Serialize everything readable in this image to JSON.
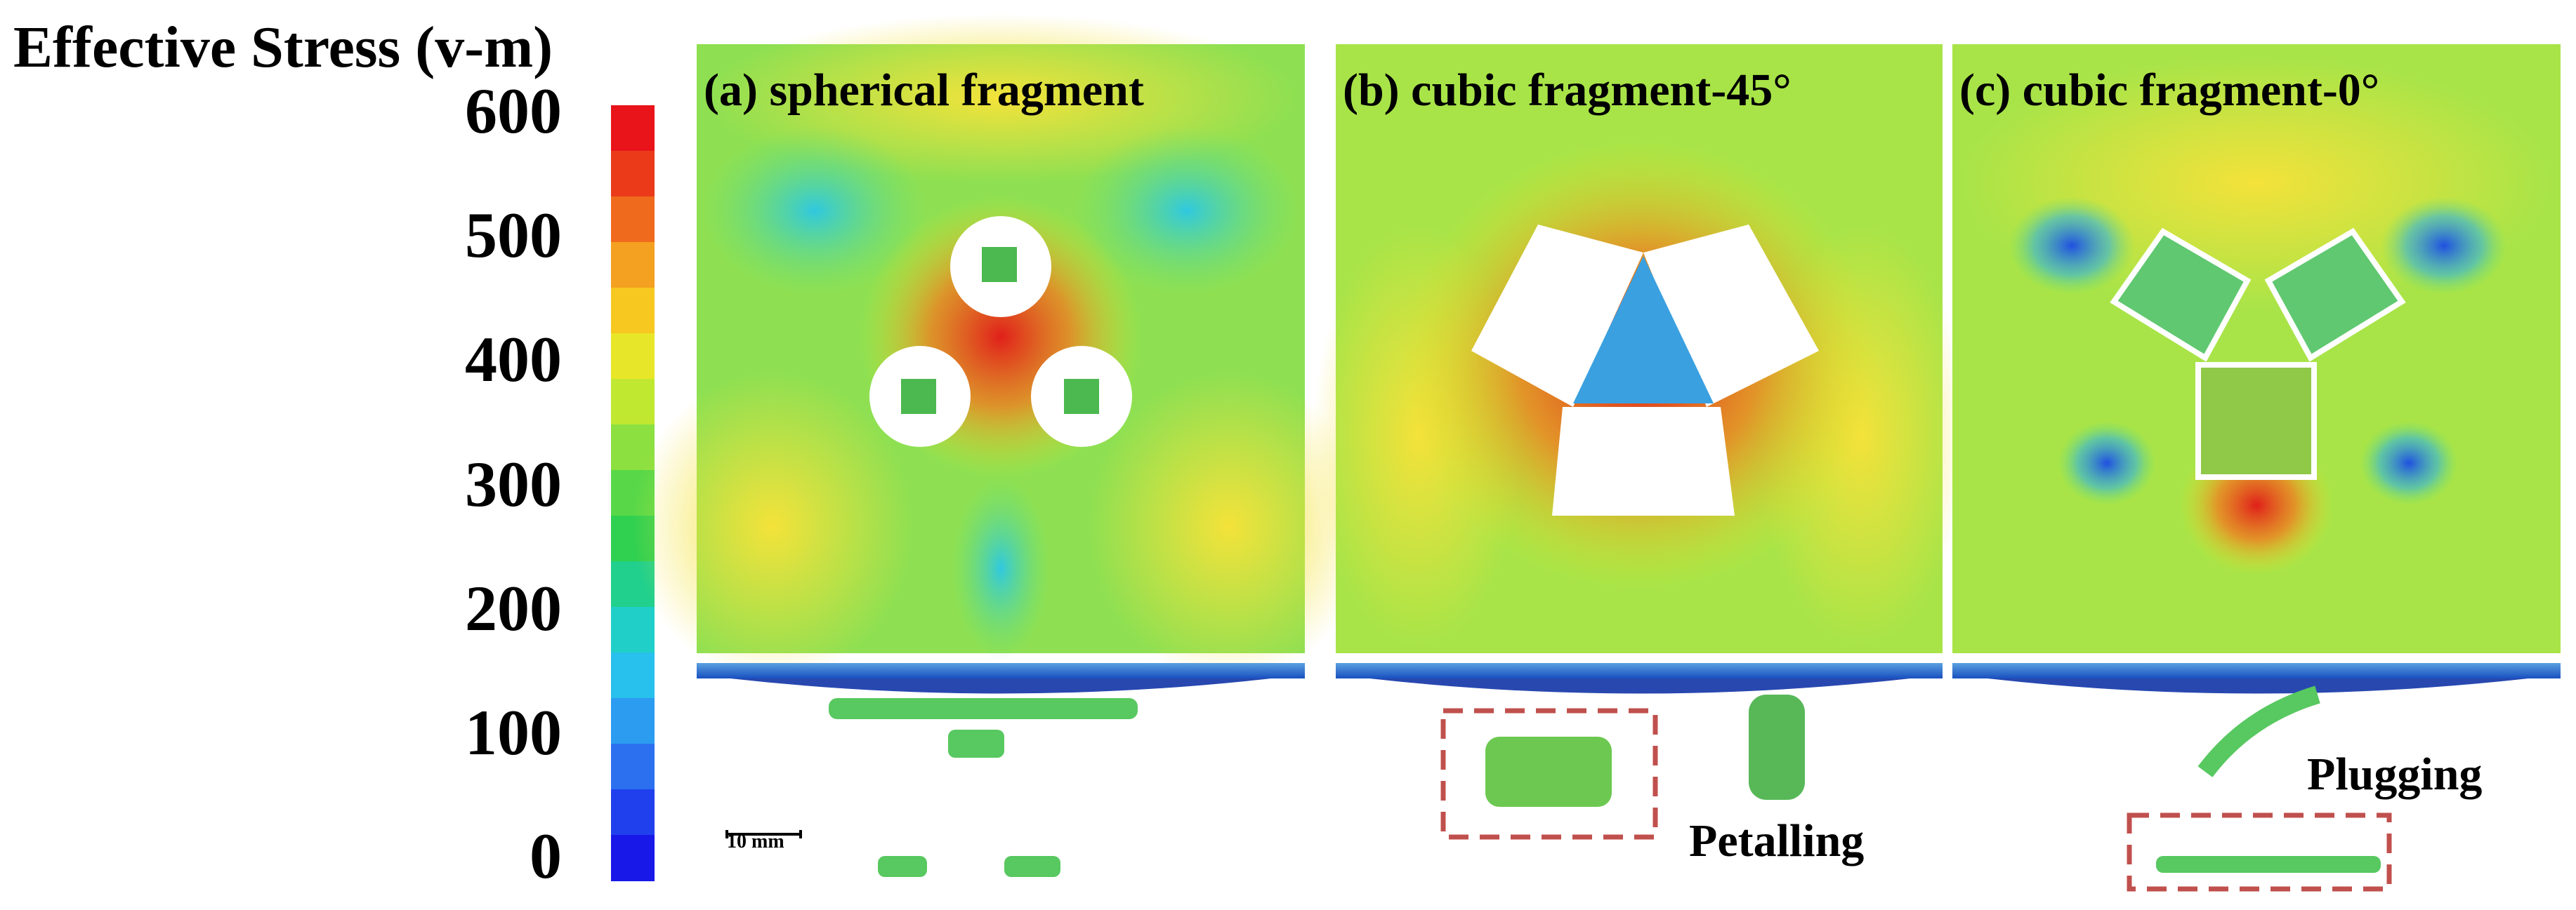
{
  "title": "Effective Stress (v-m)",
  "colorbar": {
    "ticks": [
      600,
      500,
      400,
      300,
      200,
      100,
      0
    ]
  },
  "panels": [
    {
      "label": "(a) spherical fragment"
    },
    {
      "label": "(b) cubic fragment-45°",
      "annotation": "Petalling"
    },
    {
      "label": "(c) cubic fragment-0°",
      "annotation": "Plugging"
    }
  ],
  "scale_bar": "10 mm"
}
